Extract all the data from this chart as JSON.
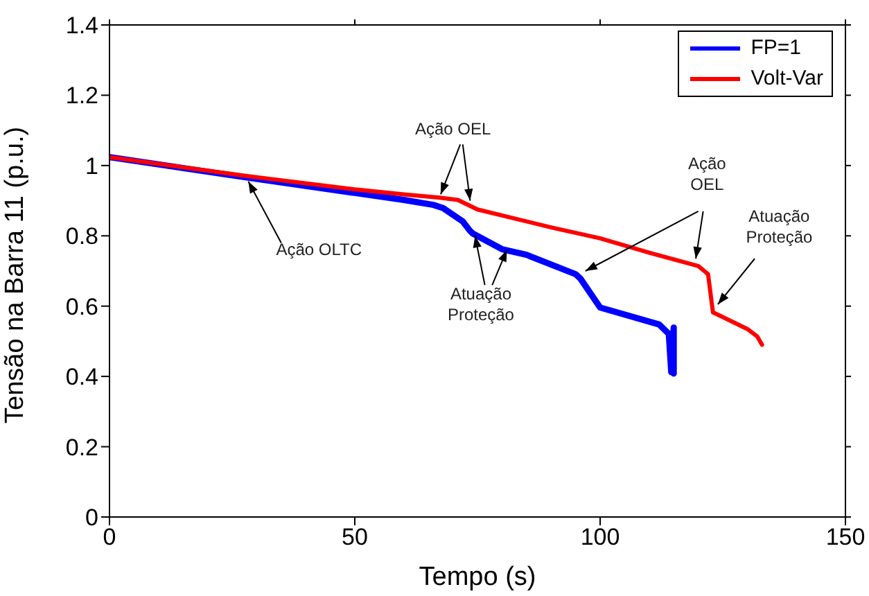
{
  "chart_data": {
    "type": "line",
    "xlabel": "Tempo (s)",
    "ylabel": "Tensão na Barra 11 (p.u.)",
    "xlim": [
      0,
      150
    ],
    "xticks": [
      0,
      50,
      100,
      150
    ],
    "ylim": [
      0,
      1.4
    ],
    "yticks": [
      0,
      0.2,
      0.4,
      0.6,
      0.8,
      1,
      1.2,
      1.4
    ],
    "legend": "top right",
    "marker": "none",
    "line_style": "solid",
    "series": [
      {
        "name": "FP=1",
        "color": "#0000ff",
        "x": [
          0,
          28,
          50,
          60,
          66,
          68,
          72,
          73.5,
          74,
          80,
          85,
          95,
          96,
          100,
          112,
          114,
          114.5,
          115,
          115
        ],
        "values": [
          1.024,
          0.966,
          0.922,
          0.902,
          0.888,
          0.879,
          0.841,
          0.814,
          0.807,
          0.762,
          0.746,
          0.691,
          0.678,
          0.596,
          0.548,
          0.521,
          0.412,
          0.539,
          0.408
        ]
      },
      {
        "name": "Volt-Var",
        "color": "#ff0000",
        "x": [
          0,
          28,
          50,
          60,
          67,
          71,
          75,
          90,
          100,
          110,
          120,
          122,
          123,
          125,
          130,
          132,
          133
        ],
        "values": [
          1.024,
          0.97,
          0.932,
          0.918,
          0.909,
          0.902,
          0.875,
          0.824,
          0.793,
          0.752,
          0.714,
          0.691,
          0.582,
          0.569,
          0.535,
          0.514,
          0.49
        ]
      }
    ],
    "annotations": [
      {
        "text": "Ação OLTC",
        "x": 28.3,
        "y": 0.955
      },
      {
        "text": "Ação OEL",
        "x": 67.5,
        "y": 0.918
      },
      {
        "text": "Atuação\nProteção",
        "x": 74.5,
        "y": 0.8
      },
      {
        "text": "Ação\nOEL",
        "x": 97,
        "y": 0.7
      },
      {
        "text": "Atuação\nProteção",
        "x": 124,
        "y": 0.605
      }
    ]
  }
}
